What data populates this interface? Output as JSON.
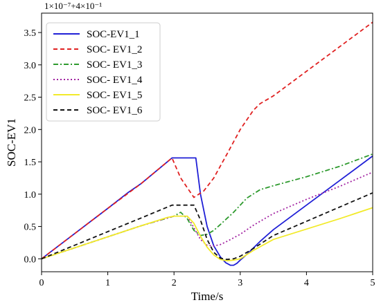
{
  "chart_data": {
    "type": "line",
    "title": "",
    "xlabel": "Time/s",
    "ylabel": "SOC-EV1",
    "offset_label": "1×10⁻⁷+4×10⁻¹",
    "xlim": [
      0,
      5
    ],
    "ylim": [
      -0.2,
      3.8
    ],
    "xticks": [
      0,
      1,
      2,
      3,
      4,
      5
    ],
    "yticks": [
      0.0,
      0.5,
      1.0,
      1.5,
      2.0,
      2.5,
      3.0,
      3.5
    ],
    "xtick_labels": [
      "0",
      "1",
      "2",
      "3",
      "4",
      "5"
    ],
    "ytick_labels": [
      "0.0",
      "0.5",
      "1.0",
      "1.5",
      "2.0",
      "2.5",
      "3.0",
      "3.5"
    ],
    "grid": false,
    "legend_position": "top-left",
    "series": [
      {
        "name": "SOC-EV1_1",
        "color": "#1f1fd6",
        "dash": "solid",
        "x": [
          0,
          0.5,
          1.0,
          1.3,
          1.5,
          1.97,
          2.05,
          2.2,
          2.33,
          2.4,
          2.5,
          2.6,
          2.7,
          2.78,
          2.85,
          2.9,
          2.95,
          3.0,
          3.1,
          3.3,
          3.5,
          4.0,
          4.5,
          5.0
        ],
        "y": [
          0,
          0.39,
          0.78,
          1.02,
          1.16,
          1.56,
          1.56,
          1.56,
          1.56,
          1.0,
          0.5,
          0.2,
          0.03,
          -0.06,
          -0.1,
          -0.1,
          -0.07,
          -0.02,
          0.07,
          0.27,
          0.45,
          0.83,
          1.21,
          1.59
        ]
      },
      {
        "name": "SOC- EV1_2",
        "color": "#e02020",
        "dash": "6,4",
        "x": [
          0,
          0.5,
          1.0,
          1.5,
          1.97,
          2.1,
          2.2,
          2.3,
          2.45,
          2.6,
          2.8,
          3.0,
          3.2,
          3.3,
          3.5,
          4.0,
          4.5,
          5.0
        ],
        "y": [
          0,
          0.39,
          0.78,
          1.16,
          1.56,
          1.25,
          1.1,
          0.95,
          1.05,
          1.25,
          1.62,
          2.0,
          2.3,
          2.4,
          2.52,
          2.9,
          3.28,
          3.66
        ]
      },
      {
        "name": "SOC- EV1_3",
        "color": "#2e9a2e",
        "dash": "7,3,2,3",
        "x": [
          0,
          0.5,
          1.0,
          1.5,
          1.9,
          2.0,
          2.1,
          2.2,
          2.3,
          2.4,
          2.5,
          2.6,
          2.7,
          2.9,
          3.1,
          3.3,
          3.5,
          4.0,
          4.5,
          5.0
        ],
        "y": [
          0,
          0.17,
          0.34,
          0.51,
          0.63,
          0.66,
          0.72,
          0.62,
          0.44,
          0.36,
          0.38,
          0.44,
          0.53,
          0.72,
          0.94,
          1.07,
          1.13,
          1.27,
          1.43,
          1.62
        ]
      },
      {
        "name": "SOC- EV1_4",
        "color": "#a020a0",
        "dash": "2,3",
        "x": [
          0,
          0.5,
          1.0,
          1.5,
          1.9,
          2.0,
          2.2,
          2.3,
          2.4,
          2.5,
          2.6,
          2.7,
          2.8,
          3.0,
          3.2,
          3.5,
          4.0,
          4.5,
          5.0
        ],
        "y": [
          0,
          0.17,
          0.34,
          0.51,
          0.63,
          0.66,
          0.66,
          0.48,
          0.3,
          0.21,
          0.2,
          0.22,
          0.27,
          0.38,
          0.52,
          0.7,
          0.92,
          1.12,
          1.34
        ]
      },
      {
        "name": "SOC- EV1_5",
        "color": "#f2ea2a",
        "dash": "solid",
        "x": [
          0,
          0.5,
          1.0,
          1.5,
          1.9,
          2.0,
          2.2,
          2.3,
          2.4,
          2.5,
          2.6,
          2.7,
          2.8,
          2.9,
          3.0,
          3.2,
          3.5,
          4.0,
          4.5,
          5.0
        ],
        "y": [
          0,
          0.17,
          0.34,
          0.51,
          0.64,
          0.66,
          0.66,
          0.55,
          0.35,
          0.18,
          0.06,
          -0.01,
          -0.03,
          -0.02,
          0.0,
          0.13,
          0.3,
          0.46,
          0.62,
          0.79
        ]
      },
      {
        "name": "SOC- EV1_6",
        "color": "#111111",
        "dash": "6,4",
        "x": [
          0,
          0.5,
          1.0,
          1.5,
          1.97,
          2.1,
          2.3,
          2.4,
          2.5,
          2.6,
          2.7,
          2.8,
          2.9,
          3.0,
          3.2,
          3.5,
          4.0,
          4.5,
          5.0
        ],
        "y": [
          0,
          0.21,
          0.42,
          0.63,
          0.83,
          0.83,
          0.83,
          0.6,
          0.3,
          0.1,
          0.01,
          -0.01,
          0.0,
          0.04,
          0.16,
          0.36,
          0.58,
          0.8,
          1.02
        ]
      }
    ]
  }
}
